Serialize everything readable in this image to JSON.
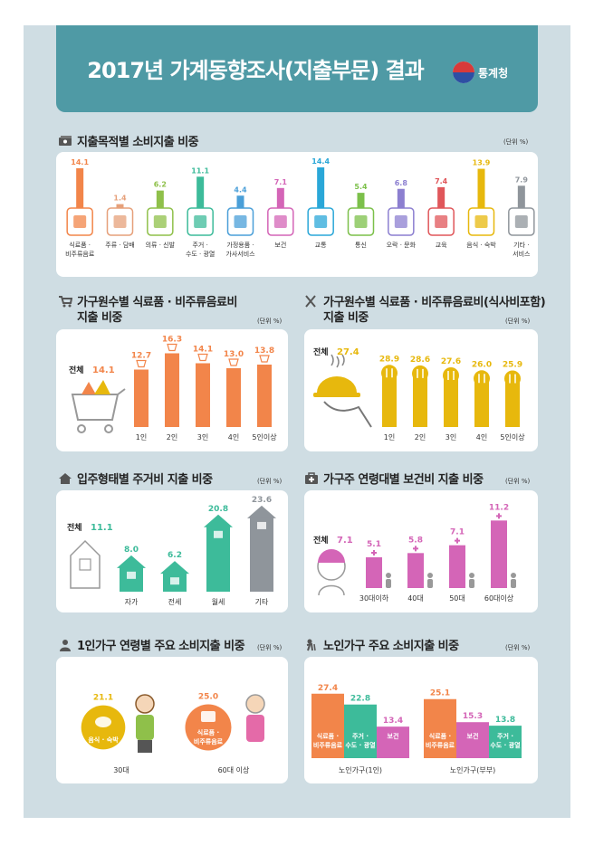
{
  "header": {
    "title": "2017년 가계동향조사(지출부문) 결과",
    "logo_text": "통계청"
  },
  "unit_label": "(단위 %)",
  "colors": {
    "header": "#4f9aa5",
    "background": "#cfdde3",
    "orange": "#f2854a",
    "yellow": "#e7b80d",
    "teal": "#3dbb9a",
    "pink": "#d465b7",
    "gray": "#8f959b"
  },
  "sections": {
    "purpose": "지출목적별 소비지출 비중",
    "food_hh": "가구원수별 식료품 · 비주류음료비 지출 비중",
    "food_hh_line1": "가구원수별 식료품 · 비주류음료비",
    "food_hh_line2": "지출 비중",
    "meal_hh_line1": "가구원수별 식료품 · 비주류음료비(식사비포함)",
    "meal_hh_line2": "지출 비중",
    "housing": "입주형태별 주거비 지출 비중",
    "health": "가구주 연령대별 보건비 지출 비중",
    "single": "1인가구 연령별 주요 소비지출 비중",
    "elderly": "노인가구 주요 소비지출 비중"
  },
  "chart_data": [
    {
      "type": "bar",
      "title": "지출목적별 소비지출 비중",
      "categories": [
        "식료품 · 비주류음료",
        "주류 · 담배",
        "의류 · 신발",
        "주거 · 수도 · 광열",
        "가정용품 · 가사서비스",
        "보건",
        "교통",
        "통신",
        "오락 · 문화",
        "교육",
        "음식 · 숙박",
        "기타 · 서비스"
      ],
      "category_lines": [
        [
          "식료품 ·",
          "비주류음료"
        ],
        [
          "주류 · 담배"
        ],
        [
          "의류 · 신발"
        ],
        [
          "주거 ·",
          "수도 · 광열"
        ],
        [
          "가정용품 ·",
          "가사서비스"
        ],
        [
          "보건"
        ],
        [
          "교통"
        ],
        [
          "통신"
        ],
        [
          "오락 · 문화"
        ],
        [
          "교육"
        ],
        [
          "음식 · 숙박"
        ],
        [
          "기타 ·",
          "서비스"
        ]
      ],
      "values": [
        14.1,
        1.4,
        6.2,
        11.1,
        4.4,
        7.1,
        14.4,
        5.4,
        6.8,
        7.4,
        13.9,
        7.9
      ],
      "labels": [
        "14.1",
        "1.4",
        "6.2",
        "11.1",
        "4.4",
        "7.1",
        "14.4",
        "5.4",
        "6.8",
        "7.4",
        "13.9",
        "7.9"
      ],
      "colors": [
        "#f2854a",
        "#e6a07a",
        "#8fc04a",
        "#3dbb9a",
        "#4a9fd8",
        "#d465b7",
        "#2aa7d8",
        "#7cc04a",
        "#8c7fd0",
        "#e0565a",
        "#e7b80d",
        "#8f959b"
      ],
      "ylim": [
        0,
        16
      ]
    },
    {
      "type": "bar",
      "title": "가구원수별 식료품 · 비주류음료비 지출 비중",
      "total_label": "전체",
      "total_value": "14.1",
      "categories": [
        "1인",
        "2인",
        "3인",
        "4인",
        "5인이상"
      ],
      "values": [
        12.7,
        16.3,
        14.1,
        13.0,
        13.8
      ],
      "labels": [
        "12.7",
        "16.3",
        "14.1",
        "13.0",
        "13.8"
      ],
      "color": "#f2854a",
      "ylim": [
        0,
        18
      ]
    },
    {
      "type": "bar",
      "title": "가구원수별 식료품 · 비주류음료비(식사비포함) 지출 비중",
      "total_label": "전체",
      "total_value": "27.4",
      "categories": [
        "1인",
        "2인",
        "3인",
        "4인",
        "5인이상"
      ],
      "values": [
        28.9,
        28.6,
        27.6,
        26.0,
        25.9
      ],
      "labels": [
        "28.9",
        "28.6",
        "27.6",
        "26.0",
        "25.9"
      ],
      "color": "#e7b80d",
      "ylim": [
        0,
        30
      ]
    },
    {
      "type": "bar",
      "title": "입주형태별 주거비 지출 비중",
      "total_label": "전체",
      "total_value": "11.1",
      "categories": [
        "자가",
        "전세",
        "월세",
        "기타"
      ],
      "values": [
        8.0,
        6.2,
        20.8,
        23.6
      ],
      "labels": [
        "8.0",
        "6.2",
        "20.8",
        "23.6"
      ],
      "colors": [
        "#3dbb9a",
        "#3dbb9a",
        "#3dbb9a",
        "#8f959b"
      ],
      "ylim": [
        0,
        25
      ]
    },
    {
      "type": "bar",
      "title": "가구주 연령대별 보건비 지출 비중",
      "total_label": "전체",
      "total_value": "7.1",
      "categories": [
        "30대이하",
        "40대",
        "50대",
        "60대이상"
      ],
      "values": [
        5.1,
        5.8,
        7.1,
        11.2
      ],
      "labels": [
        "5.1",
        "5.8",
        "7.1",
        "11.2"
      ],
      "color": "#d465b7",
      "ylim": [
        0,
        12
      ]
    },
    {
      "type": "bubble",
      "title": "1인가구 연령별 주요 소비지출 비중",
      "groups": [
        {
          "name": "30대",
          "item": "음식 · 숙박",
          "value": 21.1,
          "label": "21.1",
          "color": "#e7b80d"
        },
        {
          "name": "60대 이상",
          "item": "식료품 · 비주류음료",
          "item_lines": [
            "식료품 ·",
            "비주류음료"
          ],
          "value": 25.0,
          "label": "25.0",
          "color": "#f2854a"
        }
      ]
    },
    {
      "type": "bar",
      "title": "노인가구 주요 소비지출 비중",
      "groups": [
        {
          "name": "노인가구(1인)",
          "items": [
            {
              "label": "식료품 · 비주류음료",
              "lines": [
                "식료품 ·",
                "비주류음료"
              ],
              "value": 27.4,
              "text": "27.4",
              "color": "#f2854a"
            },
            {
              "label": "주거 · 수도 · 광열",
              "lines": [
                "주거 ·",
                "수도 · 광열"
              ],
              "value": 22.8,
              "text": "22.8",
              "color": "#3dbb9a"
            },
            {
              "label": "보건",
              "lines": [
                "보건"
              ],
              "value": 13.4,
              "text": "13.4",
              "color": "#d465b7"
            }
          ]
        },
        {
          "name": "노인가구(부부)",
          "items": [
            {
              "label": "식료품 · 비주류음료",
              "lines": [
                "식료품 ·",
                "비주류음료"
              ],
              "value": 25.1,
              "text": "25.1",
              "color": "#f2854a"
            },
            {
              "label": "보건",
              "lines": [
                "보건"
              ],
              "value": 15.3,
              "text": "15.3",
              "color": "#d465b7"
            },
            {
              "label": "주거 · 수도 · 광열",
              "lines": [
                "주거 ·",
                "수도 · 광열"
              ],
              "value": 13.8,
              "text": "13.8",
              "color": "#3dbb9a"
            }
          ]
        }
      ]
    }
  ]
}
